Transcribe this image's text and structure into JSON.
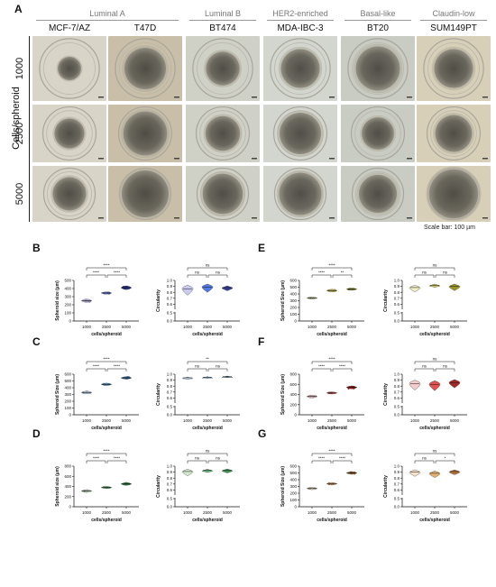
{
  "panel_a": {
    "letter": "A",
    "subtypes": [
      "Luminal A",
      "Luminal B",
      "HER2-enriched",
      "Basal-like",
      "Claudin-low"
    ],
    "cell_lines": [
      "MCF-7/AZ",
      "T47D",
      "BT474",
      "MDA-IBC-3",
      "BT20",
      "SUM149PT"
    ],
    "row_axis_label": "Cells/spheroid",
    "rows": [
      "1000",
      "2500",
      "5000"
    ],
    "scale_bar": "Scale bar: 100 µm",
    "tone_colors": [
      "#d9d4c8",
      "#c9bfa8",
      "#cfd0c6",
      "#d3d6cf",
      "#c9ccc3",
      "#d8cfb8"
    ],
    "spheroid_rel_size": {
      "1000": [
        0.18,
        0.32,
        0.26,
        0.3,
        0.34,
        0.3
      ],
      "2500": [
        0.26,
        0.38,
        0.3,
        0.36,
        0.28,
        0.32
      ],
      "5000": [
        0.3,
        0.42,
        0.36,
        0.38,
        0.34,
        0.44
      ]
    }
  },
  "common": {
    "x_axis_label": "cells/spheroid",
    "x_categories": [
      "1000",
      "2500",
      "5000"
    ],
    "circularity_label": "Circularity"
  },
  "chart_data": [
    {
      "panel": "B",
      "type": "scatter",
      "ylabel": "Spheroid size (µm)",
      "ylim": [
        0,
        500
      ],
      "yticks": [
        0,
        100,
        200,
        300,
        400,
        500
      ],
      "values": [
        250,
        345,
        410
      ],
      "spread": [
        20,
        8,
        25
      ],
      "colors": [
        "#b9b9e6",
        "#5d6fd4",
        "#1f2a8c"
      ],
      "sig": {
        "pair12": "****",
        "pair23": "****",
        "pair13": "****"
      }
    },
    {
      "panel": "B",
      "type": "violin",
      "ylabel": "Circularity",
      "ylim": [
        0.0,
        1.0
      ],
      "break": true,
      "yticks": [
        0.0,
        0.5,
        0.6,
        0.7,
        0.8,
        0.9,
        1.0
      ],
      "values": [
        0.86,
        0.89,
        0.88
      ],
      "spread": [
        0.06,
        0.05,
        0.03
      ],
      "colors": [
        "#c6c6f0",
        "#3f6ce0",
        "#1a2a8a"
      ],
      "sig": {
        "pair12": "ns",
        "pair23": "ns",
        "pair13": "ns"
      }
    },
    {
      "panel": "C",
      "type": "scatter",
      "ylabel": "Spheroid Size (µm)",
      "ylim": [
        0,
        600
      ],
      "yticks": [
        0,
        100,
        200,
        300,
        400,
        500,
        600
      ],
      "values": [
        330,
        450,
        545
      ],
      "spread": [
        15,
        10,
        12
      ],
      "colors": [
        "#bcd7ee",
        "#4c9ad6",
        "#1d5f9a"
      ],
      "sig": {
        "pair12": "****",
        "pair23": "****",
        "pair13": "****"
      }
    },
    {
      "panel": "C",
      "type": "violin",
      "ylabel": "Circularity",
      "ylim": [
        0.0,
        1.0
      ],
      "break": true,
      "yticks": [
        0.0,
        0.5,
        0.6,
        0.7,
        0.8,
        0.9,
        1.0
      ],
      "values": [
        0.94,
        0.95,
        0.96
      ],
      "spread": [
        0.015,
        0.01,
        0.01
      ],
      "colors": [
        "#bcd7ee",
        "#4c9ad6",
        "#1d5f9a"
      ],
      "sig": {
        "pair12": "ns",
        "pair23": "ns",
        "pair13": "**"
      }
    },
    {
      "panel": "D",
      "type": "scatter",
      "ylabel": "Spheroid size (µm)",
      "ylim": [
        0,
        800
      ],
      "yticks": [
        0,
        200,
        400,
        600,
        800
      ],
      "values": [
        310,
        380,
        450
      ],
      "spread": [
        20,
        8,
        20
      ],
      "colors": [
        "#cfe8c8",
        "#56b06a",
        "#2a8a40"
      ],
      "sig": {
        "pair12": "****",
        "pair23": "****",
        "pair13": "****"
      }
    },
    {
      "panel": "D",
      "type": "violin",
      "ylabel": "Circularity",
      "ylim": [
        0.0,
        1.0
      ],
      "break": true,
      "yticks": [
        0.0,
        0.5,
        0.6,
        0.7,
        0.8,
        0.9,
        1.0
      ],
      "values": [
        0.91,
        0.93,
        0.93
      ],
      "spread": [
        0.04,
        0.02,
        0.025
      ],
      "colors": [
        "#cfe8c8",
        "#56b06a",
        "#2a8a40"
      ],
      "sig": {
        "pair12": "ns",
        "pair23": "ns",
        "pair13": "ns"
      }
    },
    {
      "panel": "E",
      "type": "scatter",
      "ylabel": "Spheroid Size (µm)",
      "ylim": [
        0,
        600
      ],
      "yticks": [
        0,
        100,
        200,
        300,
        400,
        500,
        600
      ],
      "values": [
        340,
        450,
        470
      ],
      "spread": [
        10,
        12,
        6
      ],
      "colors": [
        "#efefc0",
        "#c9c140",
        "#8f8a10"
      ],
      "sig": {
        "pair12": "****",
        "pair23": "**",
        "pair13": "****"
      }
    },
    {
      "panel": "E",
      "type": "violin",
      "ylabel": "Circularity",
      "ylim": [
        0.0,
        1.0
      ],
      "break": true,
      "yticks": [
        0.0,
        0.5,
        0.6,
        0.7,
        0.8,
        0.9,
        1.0
      ],
      "values": [
        0.88,
        0.92,
        0.9
      ],
      "spread": [
        0.04,
        0.02,
        0.04
      ],
      "colors": [
        "#efefc0",
        "#c9c140",
        "#8f8a10"
      ],
      "sig": {
        "pair12": "ns",
        "pair23": "ns",
        "pair13": "ns"
      }
    },
    {
      "panel": "F",
      "type": "scatter",
      "ylabel": "Spheroid Size (µm)",
      "ylim": [
        0,
        800
      ],
      "yticks": [
        0,
        200,
        400,
        600,
        800
      ],
      "values": [
        360,
        430,
        540
      ],
      "spread": [
        20,
        6,
        25
      ],
      "colors": [
        "#f2c6c6",
        "#e04040",
        "#9a1414"
      ],
      "sig": {
        "pair12": "****",
        "pair23": "****",
        "pair13": "****"
      }
    },
    {
      "panel": "F",
      "type": "violin",
      "ylabel": "Circularity",
      "ylim": [
        0.0,
        1.0
      ],
      "break": true,
      "yticks": [
        0.0,
        0.5,
        0.6,
        0.7,
        0.8,
        0.9,
        1.0
      ],
      "values": [
        0.84,
        0.83,
        0.86
      ],
      "spread": [
        0.06,
        0.06,
        0.05
      ],
      "colors": [
        "#f2c6c6",
        "#e04040",
        "#9a1414"
      ],
      "sig": {
        "pair12": "ns",
        "pair23": "ns",
        "pair13": "ns"
      }
    },
    {
      "panel": "G",
      "type": "scatter",
      "ylabel": "Spheroid Size (µm)",
      "ylim": [
        0,
        600
      ],
      "yticks": [
        0,
        100,
        200,
        300,
        400,
        500,
        600
      ],
      "values": [
        270,
        340,
        500
      ],
      "spread": [
        8,
        10,
        15
      ],
      "colors": [
        "#f5dfc3",
        "#e2a865",
        "#a9621e"
      ],
      "sig": {
        "pair12": "****",
        "pair23": "****",
        "pair13": "****"
      }
    },
    {
      "panel": "G",
      "type": "violin",
      "ylabel": "Circularity",
      "ylim": [
        0.0,
        1.0
      ],
      "break": true,
      "yticks": [
        0.0,
        0.5,
        0.6,
        0.7,
        0.8,
        0.9,
        1.0
      ],
      "values": [
        0.9,
        0.88,
        0.91
      ],
      "spread": [
        0.04,
        0.04,
        0.03
      ],
      "colors": [
        "#f5dfc3",
        "#e2a865",
        "#a9621e"
      ],
      "sig": {
        "pair12": "ns",
        "pair23": "*",
        "pair13": "ns"
      }
    }
  ]
}
